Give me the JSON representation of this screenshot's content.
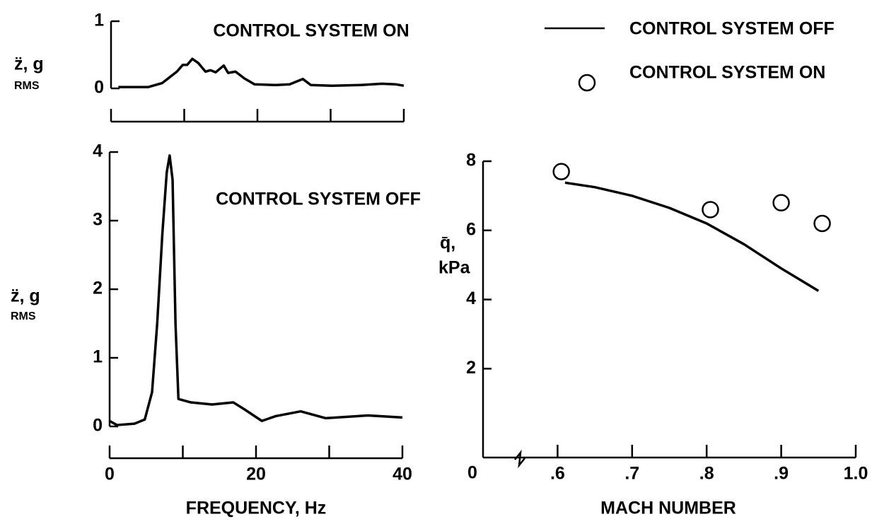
{
  "chart_data": [
    {
      "type": "line",
      "title": "CONTROL SYSTEM ON",
      "ylabel": "z̈, g",
      "ylabel_sub": "RMS",
      "x": [
        1,
        5.1,
        7,
        9,
        9.8,
        10.4,
        11.1,
        11.9,
        12.9,
        13.6,
        14.3,
        15.4,
        16,
        17,
        18.2,
        19.6,
        22.5,
        24.4,
        26.2,
        27.3,
        30.2,
        34.1,
        37,
        38.9,
        40
      ],
      "series": [
        {
          "color": "#000000",
          "values": [
            0.02,
            0.02,
            0.08,
            0.25,
            0.35,
            0.35,
            0.44,
            0.38,
            0.25,
            0.27,
            0.24,
            0.34,
            0.23,
            0.25,
            0.15,
            0.06,
            0.05,
            0.06,
            0.14,
            0.05,
            0.04,
            0.05,
            0.07,
            0.06,
            0.04
          ]
        }
      ],
      "xlim": [
        0,
        40
      ],
      "xtick_marks": [
        0,
        10,
        20,
        30,
        40
      ],
      "ylim": [
        0,
        1
      ],
      "yticks": [
        0,
        1
      ]
    },
    {
      "type": "line",
      "title": "CONTROL SYSTEM OFF",
      "ylabel": "z̈, g",
      "ylabel_sub": "RMS",
      "xlabel": "FREQUENCY, Hz",
      "x": [
        0,
        1,
        3.4,
        4.8,
        5.8,
        6.5,
        7.2,
        7.8,
        8.2,
        8.6,
        9,
        9.4,
        11.1,
        14,
        16.9,
        18.4,
        20.8,
        22.7,
        26.1,
        29.5,
        35.3,
        40
      ],
      "series": [
        {
          "color": "#000000",
          "values": [
            0.08,
            0.02,
            0.04,
            0.1,
            0.5,
            1.5,
            2.8,
            3.7,
            3.95,
            3.6,
            1.5,
            0.4,
            0.35,
            0.32,
            0.35,
            0.25,
            0.08,
            0.15,
            0.22,
            0.12,
            0.16,
            0.13
          ]
        }
      ],
      "xlim": [
        0,
        40
      ],
      "xticks": [
        0,
        20,
        40
      ],
      "xtick_marks": [
        10,
        30
      ],
      "ylim": [
        0,
        4
      ],
      "yticks": [
        0,
        1,
        2,
        3,
        4
      ]
    },
    {
      "type": "line",
      "ylabel_lines": [
        "q̄,",
        "kPa"
      ],
      "xlabel": "MACH NUMBER",
      "origin_label": "0",
      "series": [
        {
          "name": "CONTROL SYSTEM OFF",
          "color": "#000000",
          "x": [
            0.61,
            0.65,
            0.7,
            0.75,
            0.8,
            0.85,
            0.9,
            0.95
          ],
          "values": [
            7.38,
            7.25,
            7.0,
            6.65,
            6.2,
            5.6,
            4.9,
            4.25
          ]
        },
        {
          "name": "CONTROL SYSTEM ON",
          "color": "#000000",
          "marker": "circle",
          "x": [
            0.605,
            0.805,
            0.9,
            0.955
          ],
          "values": [
            7.7,
            6.6,
            6.8,
            6.2
          ]
        }
      ],
      "xlim": [
        0.5,
        1.0
      ],
      "xticks": [
        {
          "value": 0.6,
          "label": ".6"
        },
        {
          "value": 0.7,
          "label": ".7"
        },
        {
          "value": 0.8,
          "label": ".8"
        },
        {
          "value": 0.9,
          "label": ".9"
        },
        {
          "value": 1.0,
          "label": "1.0"
        }
      ],
      "ylim": [
        -0.57,
        8
      ],
      "yticks": [
        2,
        4,
        6,
        8
      ],
      "legend": "upper right"
    }
  ]
}
